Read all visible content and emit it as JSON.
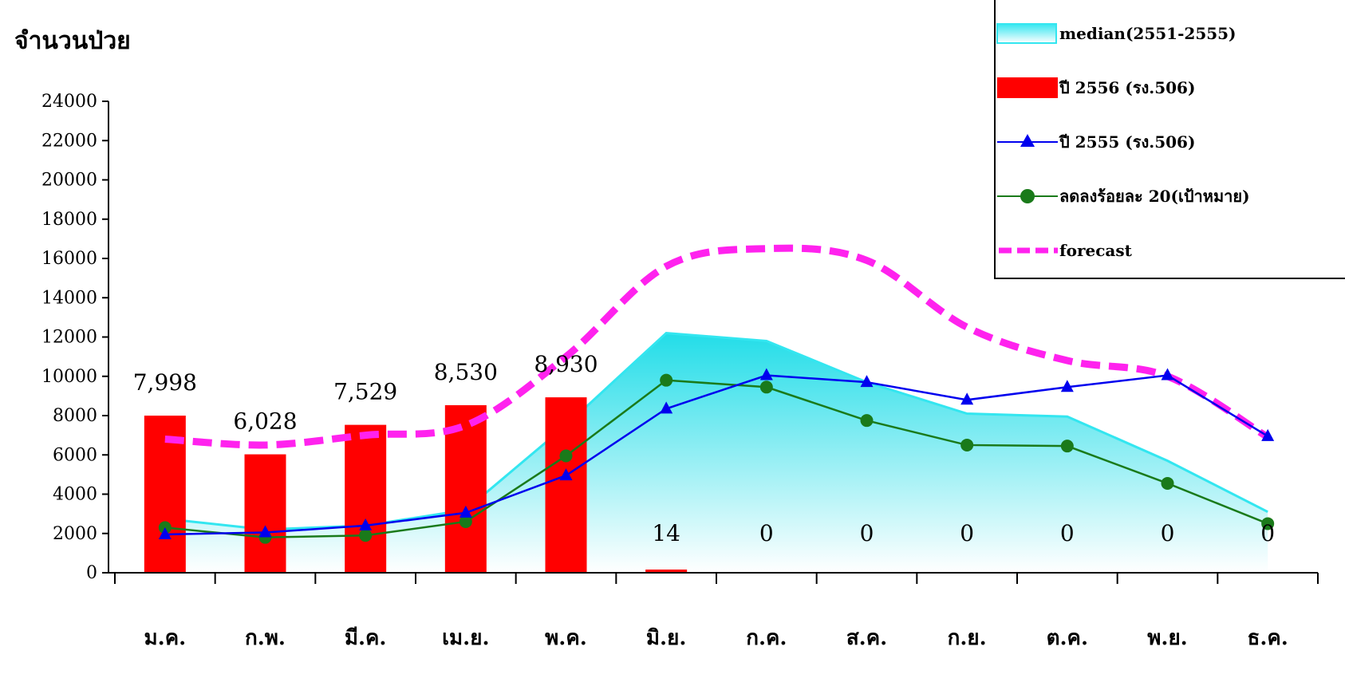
{
  "y_title": "จำนวนป่วย",
  "legend": [
    {
      "key": "median",
      "label": "median(2551-2555)",
      "symbol": "area",
      "color": "#33e6f0"
    },
    {
      "key": "y2556",
      "label": "ปี 2556 (รง.506)",
      "symbol": "bar",
      "color": "#ff0000"
    },
    {
      "key": "y2555",
      "label": "ปี 2555 (รง.506)",
      "symbol": "line-triangle",
      "color": "#0000ee"
    },
    {
      "key": "target",
      "label": "ลดลงร้อยละ 20(เป้าหมาย)",
      "symbol": "line-circle",
      "color": "#1a7a1a"
    },
    {
      "key": "forecast",
      "label": "forecast",
      "symbol": "dashed",
      "color": "#ff22ee"
    }
  ],
  "chart_data": {
    "type": "bar",
    "categories": [
      "ม.ค.",
      "ก.พ.",
      "มี.ค.",
      "เม.ย.",
      "พ.ค.",
      "มิ.ย.",
      "ก.ค.",
      "ส.ค.",
      "ก.ย.",
      "ต.ค.",
      "พ.ย.",
      "ธ.ค."
    ],
    "ylim": [
      0,
      24000
    ],
    "yticks": [
      0,
      2000,
      4000,
      6000,
      8000,
      10000,
      12000,
      14000,
      16000,
      18000,
      20000,
      22000,
      24000
    ],
    "series": [
      {
        "name": "median(2551-2555)",
        "type": "area",
        "color": "#33e6f0",
        "values": [
          2750,
          2200,
          2400,
          3200,
          7500,
          12200,
          11800,
          9700,
          8100,
          7950,
          5700,
          3100
        ]
      },
      {
        "name": "ปี 2556 (รง.506)",
        "type": "bar",
        "color": "#ff0000",
        "values": [
          7998,
          6028,
          7529,
          8530,
          8930,
          14,
          0,
          0,
          0,
          0,
          0,
          0
        ],
        "data_labels": [
          "7,998",
          "6,028",
          "7,529",
          "8,530",
          "8,930",
          "14",
          "0",
          "0",
          "0",
          "0",
          "0",
          "0"
        ]
      },
      {
        "name": "ปี 2555 (รง.506)",
        "type": "line",
        "marker": "triangle",
        "color": "#0000ee",
        "values": [
          1950,
          2050,
          2400,
          3050,
          4950,
          8350,
          10050,
          9700,
          8800,
          9450,
          10050,
          6950
        ]
      },
      {
        "name": "ลดลงร้อยละ 20(เป้าหมาย)",
        "type": "line",
        "marker": "circle",
        "color": "#1a7a1a",
        "values": [
          2300,
          1800,
          1900,
          2600,
          5950,
          9800,
          9450,
          7750,
          6500,
          6450,
          4550,
          2500
        ]
      },
      {
        "name": "forecast",
        "type": "line",
        "style": "dashed",
        "color": "#ff22ee",
        "values": [
          6800,
          6500,
          7000,
          7500,
          11000,
          15600,
          16500,
          15900,
          12500,
          10800,
          10000,
          6900
        ]
      }
    ]
  }
}
